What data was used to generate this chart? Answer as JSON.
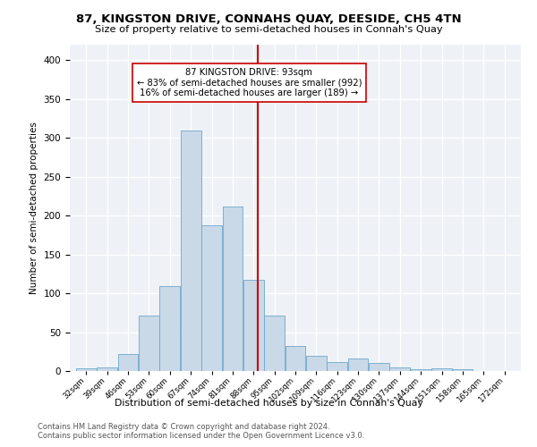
{
  "title": "87, KINGSTON DRIVE, CONNAHS QUAY, DEESIDE, CH5 4TN",
  "subtitle": "Size of property relative to semi-detached houses in Connah's Quay",
  "xlabel": "Distribution of semi-detached houses by size in Connah's Quay",
  "ylabel": "Number of semi-detached properties",
  "footer_line1": "Contains HM Land Registry data © Crown copyright and database right 2024.",
  "footer_line2": "Contains public sector information licensed under the Open Government Licence v3.0.",
  "annotation_line1": "87 KINGSTON DRIVE: 93sqm",
  "annotation_line2": "← 83% of semi-detached houses are smaller (992)",
  "annotation_line3": "16% of semi-detached houses are larger (189) →",
  "property_size": 93,
  "bar_color": "#c9d9e8",
  "bar_edge_color": "#6fa8cc",
  "vline_color": "#cc0000",
  "background_color": "#eef2f7",
  "categories": [
    "32sqm",
    "39sqm",
    "46sqm",
    "53sqm",
    "60sqm",
    "67sqm",
    "74sqm",
    "81sqm",
    "88sqm",
    "95sqm",
    "102sqm",
    "109sqm",
    "116sqm",
    "123sqm",
    "130sqm",
    "137sqm",
    "144sqm",
    "151sqm",
    "158sqm",
    "165sqm",
    "172sqm"
  ],
  "bin_left_edges": [
    32,
    39,
    46,
    53,
    60,
    67,
    74,
    81,
    88,
    95,
    102,
    109,
    116,
    123,
    130,
    137,
    144,
    151,
    158,
    165,
    172
  ],
  "values": [
    4,
    5,
    22,
    71,
    109,
    310,
    188,
    212,
    117,
    71,
    32,
    19,
    11,
    16,
    10,
    5,
    2,
    3,
    2,
    0,
    0
  ],
  "ylim": [
    0,
    420
  ],
  "yticks": [
    0,
    50,
    100,
    150,
    200,
    250,
    300,
    350,
    400
  ]
}
